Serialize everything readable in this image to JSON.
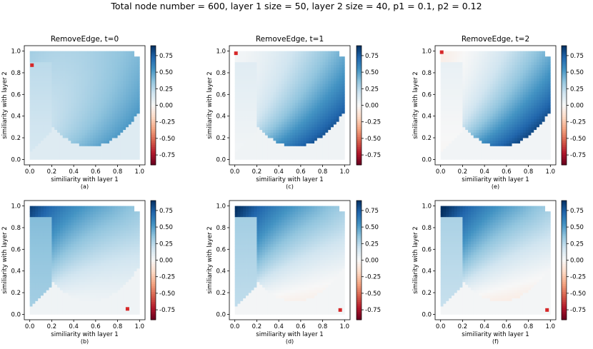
{
  "suptitle": "Total node number = 600, layer 1 size = 50, layer 2 size = 40, p1 = 0.1, p2 = 0.12",
  "colors": {
    "neg": "#67001f",
    "mid": "#f7f7f7",
    "pos": "#053061",
    "marker": "#d62728"
  },
  "chart_data": [
    {
      "type": "heatmap",
      "panel": "(a)",
      "title": "RemoveEdge, t=0",
      "xlabel": "similiarity with layer 1",
      "ylabel": "similiarity with layer 2",
      "xlim": [
        0,
        1
      ],
      "ylim": [
        0,
        1
      ],
      "xticks": [
        "0.0",
        "0.2",
        "0.4",
        "0.6",
        "0.8",
        "1.0"
      ],
      "yticks": [
        "0.0",
        "0.2",
        "0.4",
        "0.6",
        "0.8",
        "1.0"
      ],
      "colorbar": {
        "range": [
          -0.9,
          0.9
        ],
        "ticks": [
          "0.75",
          "0.50",
          "0.25",
          "0.00",
          "-0.25",
          "-0.50",
          "-0.75"
        ]
      },
      "marker": {
        "x": 0.02,
        "y": 0.87
      },
      "field": {
        "top": 0.3,
        "right": 0.55,
        "left": 0.15,
        "base": 0.12
      }
    },
    {
      "type": "heatmap",
      "panel": "(c)",
      "title": "RemoveEdge, t=1",
      "xlabel": "similiarity with layer 1",
      "ylabel": "similiarity with layer 2",
      "xlim": [
        0,
        1
      ],
      "ylim": [
        0,
        1
      ],
      "xticks": [
        "0.0",
        "0.2",
        "0.4",
        "0.6",
        "0.8",
        "1.0"
      ],
      "yticks": [
        "0.0",
        "0.2",
        "0.4",
        "0.6",
        "0.8",
        "1.0"
      ],
      "colorbar": {
        "range": [
          -0.9,
          0.9
        ],
        "ticks": [
          "0.75",
          "0.50",
          "0.25",
          "0.00",
          "-0.25",
          "-0.50",
          "-0.75"
        ]
      },
      "marker": {
        "x": 0.01,
        "y": 0.98
      },
      "field": {
        "top": 0.02,
        "right": 0.85,
        "left": 0.02,
        "base": 0.04
      }
    },
    {
      "type": "heatmap",
      "panel": "(e)",
      "title": "RemoveEdge, t=2",
      "xlabel": "similiarity with layer 1",
      "ylabel": "similiarity with layer 2",
      "xlim": [
        0,
        1
      ],
      "ylim": [
        0,
        1
      ],
      "xticks": [
        "0.0",
        "0.2",
        "0.4",
        "0.6",
        "0.8",
        "1.0"
      ],
      "yticks": [
        "0.0",
        "0.2",
        "0.4",
        "0.6",
        "0.8",
        "1.0"
      ],
      "colorbar": {
        "range": [
          -0.9,
          0.9
        ],
        "ticks": [
          "0.75",
          "0.50",
          "0.25",
          "0.00",
          "-0.25",
          "-0.50",
          "-0.75"
        ]
      },
      "marker": {
        "x": 0.01,
        "y": 0.99
      },
      "field": {
        "top": -0.06,
        "right": 0.9,
        "left": -0.02,
        "base": 0.03
      }
    },
    {
      "type": "heatmap",
      "panel": "(b)",
      "title": "",
      "xlabel": "similiarity with layer 1",
      "ylabel": "similiarity with layer 2",
      "xlim": [
        0,
        1
      ],
      "ylim": [
        0,
        1
      ],
      "xticks": [
        "0.0",
        "0.2",
        "0.4",
        "0.6",
        "0.8",
        "1.0"
      ],
      "yticks": [
        "0.0",
        "0.2",
        "0.4",
        "0.6",
        "0.8",
        "1.0"
      ],
      "colorbar": {
        "range": [
          -0.9,
          0.9
        ],
        "ticks": [
          "0.75",
          "0.50",
          "0.25",
          "0.00",
          "-0.25",
          "-0.50",
          "-0.75"
        ]
      },
      "marker": {
        "x": 0.89,
        "y": 0.05
      },
      "field": {
        "top": 0.82,
        "right": 0.05,
        "left": 0.3,
        "base": 0.04
      }
    },
    {
      "type": "heatmap",
      "panel": "(d)",
      "title": "",
      "xlabel": "similiarity with layer 1",
      "ylabel": "similiarity with layer 2",
      "xlim": [
        0,
        1
      ],
      "ylim": [
        0,
        1
      ],
      "xticks": [
        "0.0",
        "0.2",
        "0.4",
        "0.6",
        "0.8",
        "1.0"
      ],
      "yticks": [
        "0.0",
        "0.2",
        "0.4",
        "0.6",
        "0.8",
        "1.0"
      ],
      "colorbar": {
        "range": [
          -0.9,
          0.9
        ],
        "ticks": [
          "0.75",
          "0.50",
          "0.25",
          "0.00",
          "-0.25",
          "-0.50",
          "-0.75"
        ]
      },
      "marker": {
        "x": 0.96,
        "y": 0.04
      },
      "field": {
        "top": 0.88,
        "right": -0.06,
        "left": 0.22,
        "base": 0.02
      }
    },
    {
      "type": "heatmap",
      "panel": "(f)",
      "title": "",
      "xlabel": "similiarity with layer 1",
      "ylabel": "similiarity with layer 2",
      "xlim": [
        0,
        1
      ],
      "ylim": [
        0,
        1
      ],
      "xticks": [
        "0.0",
        "0.2",
        "0.4",
        "0.6",
        "0.8",
        "1.0"
      ],
      "yticks": [
        "0.0",
        "0.2",
        "0.4",
        "0.6",
        "0.8",
        "1.0"
      ],
      "colorbar": {
        "range": [
          -0.9,
          0.9
        ],
        "ticks": [
          "0.75",
          "0.50",
          "0.25",
          "0.00",
          "-0.25",
          "-0.50",
          "-0.75"
        ]
      },
      "marker": {
        "x": 0.97,
        "y": 0.04
      },
      "field": {
        "top": 0.9,
        "right": -0.08,
        "left": 0.2,
        "base": 0.02
      }
    }
  ]
}
